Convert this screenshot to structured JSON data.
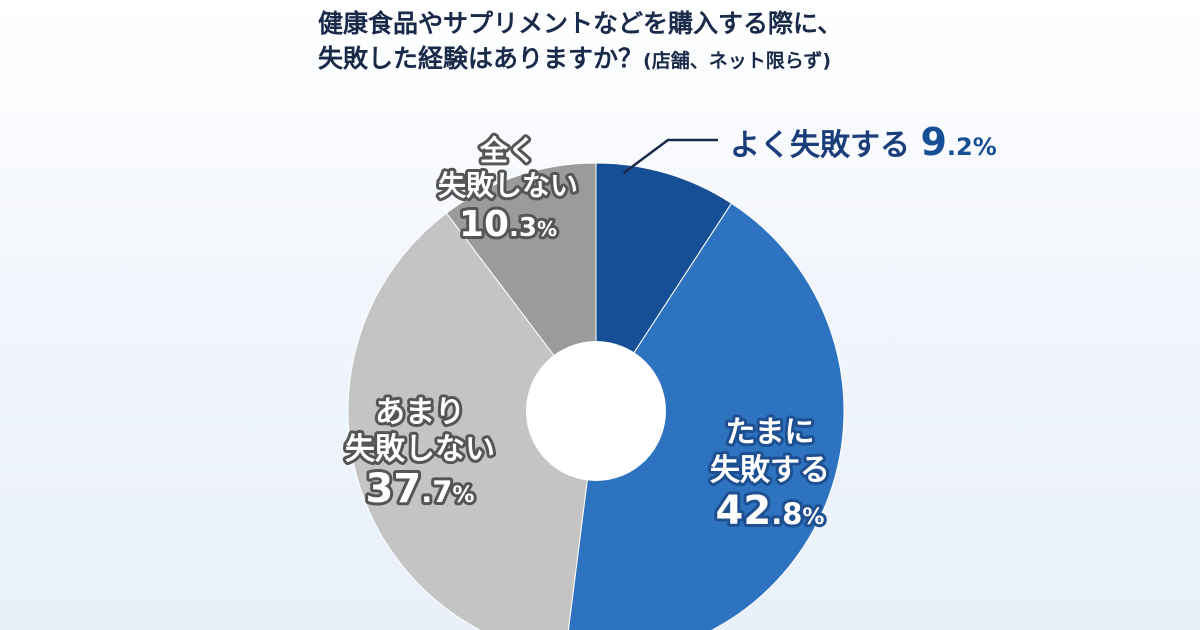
{
  "title": {
    "line1": "健康食品やサプリメントなどを購入する際に、",
    "line2": "失敗した経験はありますか？",
    "note": "(店舗、ネット限らず)"
  },
  "chart_data": {
    "type": "pie",
    "donut": true,
    "title": "健康食品やサプリメントなどを購入する際に、失敗した経験はありますか？(店舗、ネット限らず)",
    "unit": "%",
    "slices": [
      {
        "label_lines": [
          "よく失敗する"
        ],
        "value": 9.2,
        "value_int": "9",
        "value_dec": ".2",
        "pct": "%",
        "color": "#164f96"
      },
      {
        "label_lines": [
          "たまに",
          "失敗する"
        ],
        "value": 42.8,
        "value_int": "42",
        "value_dec": ".8",
        "pct": "%",
        "color": "#2e73c0"
      },
      {
        "label_lines": [
          "あまり",
          "失敗しない"
        ],
        "value": 37.7,
        "value_int": "37",
        "value_dec": ".7",
        "pct": "%",
        "color": "#c4c4c4"
      },
      {
        "label_lines": [
          "全く",
          "失敗しない"
        ],
        "value": 10.3,
        "value_int": "10",
        "value_dec": ".3",
        "pct": "%",
        "color": "#9b9b9b"
      }
    ]
  }
}
